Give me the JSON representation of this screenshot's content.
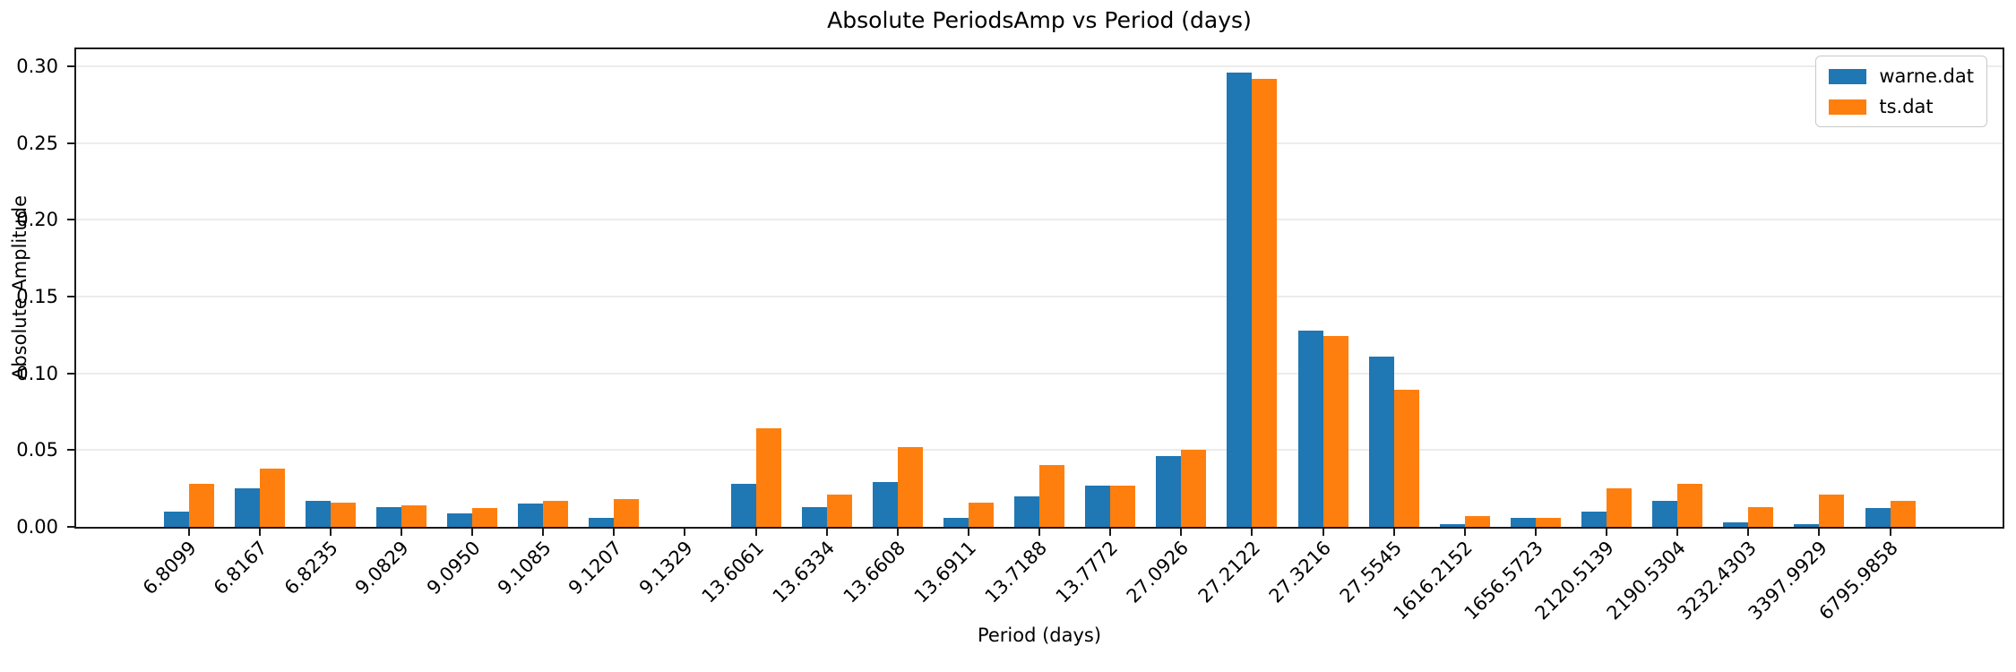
{
  "title": "Absolute PeriodsAmp vs Period (days)",
  "chart_data": {
    "type": "bar",
    "title": "Absolute PeriodsAmp vs Period (days)",
    "xlabel": "Period (days)",
    "ylabel": "Absolute Amplitude",
    "grid": true,
    "legend_position": "upper right",
    "ylim": [
      0,
      0.311
    ],
    "yticks": [
      0.0,
      0.05,
      0.1,
      0.15,
      0.2,
      0.25,
      0.3
    ],
    "ytick_labels": [
      "0.00",
      "0.05",
      "0.10",
      "0.15",
      "0.20",
      "0.25",
      "0.30"
    ],
    "categories": [
      "6.8099",
      "6.8167",
      "6.8235",
      "9.0829",
      "9.0950",
      "9.1085",
      "9.1207",
      "9.1329",
      "13.6061",
      "13.6334",
      "13.6608",
      "13.6911",
      "13.7188",
      "13.7772",
      "27.0926",
      "27.2122",
      "27.3216",
      "27.5545",
      "1616.2152",
      "1656.5723",
      "2120.5139",
      "2190.5304",
      "3232.4303",
      "3397.9929",
      "6795.9858"
    ],
    "series": [
      {
        "name": "warne.dat",
        "color": "#1f77b4",
        "values": [
          0.01,
          0.025,
          0.017,
          0.013,
          0.009,
          0.015,
          0.006,
          0.0,
          0.028,
          0.013,
          0.029,
          0.006,
          0.02,
          0.027,
          0.046,
          0.296,
          0.128,
          0.111,
          0.002,
          0.006,
          0.01,
          0.017,
          0.003,
          0.002,
          0.012
        ]
      },
      {
        "name": "ts.dat",
        "color": "#ff7f0e",
        "values": [
          0.028,
          0.038,
          0.016,
          0.014,
          0.012,
          0.017,
          0.018,
          0.0,
          0.064,
          0.021,
          0.052,
          0.016,
          0.04,
          0.027,
          0.05,
          0.292,
          0.124,
          0.089,
          0.007,
          0.006,
          0.025,
          0.028,
          0.013,
          0.021,
          0.017
        ]
      }
    ]
  }
}
